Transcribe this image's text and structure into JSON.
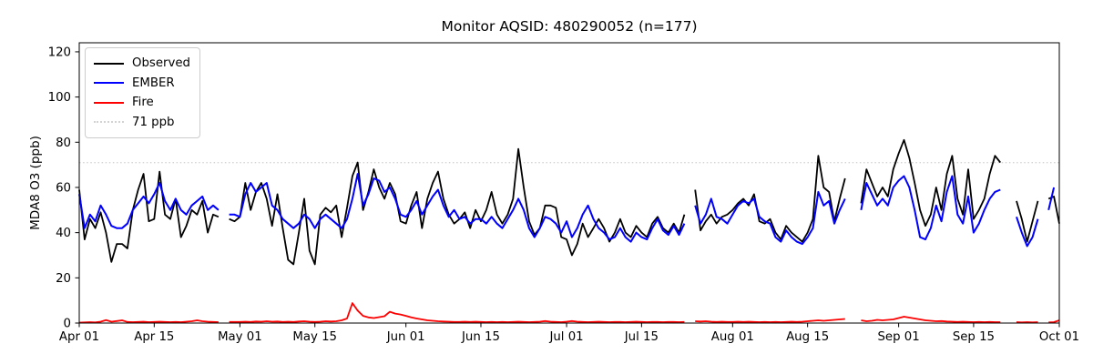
{
  "chart_data": {
    "type": "line",
    "title": "Monitor AQSID: 480290052 (n=177)",
    "xlabel": "",
    "ylabel": "MDA8 O3 (ppb)",
    "ylim": [
      0,
      124
    ],
    "yticks": [
      0,
      20,
      40,
      60,
      80,
      100,
      120
    ],
    "x_start": "Apr 01",
    "x_end": "Oct 01",
    "x_total_days": 183,
    "grid": false,
    "legend_position": "upper left",
    "xticks": [
      {
        "label": "Apr 01",
        "day": 0
      },
      {
        "label": "Apr 15",
        "day": 14
      },
      {
        "label": "May 01",
        "day": 30
      },
      {
        "label": "May 15",
        "day": 44
      },
      {
        "label": "Jun 01",
        "day": 61
      },
      {
        "label": "Jun 15",
        "day": 75
      },
      {
        "label": "Jul 01",
        "day": 91
      },
      {
        "label": "Jul 15",
        "day": 105
      },
      {
        "label": "Aug 01",
        "day": 122
      },
      {
        "label": "Aug 15",
        "day": 136
      },
      {
        "label": "Sep 01",
        "day": 153
      },
      {
        "label": "Sep 15",
        "day": 167
      },
      {
        "label": "Oct 01",
        "day": 183
      }
    ],
    "threshold": {
      "value": 71,
      "label": "71 ppb",
      "color": "#d3d3d3",
      "style": "dotted"
    },
    "legend": [
      {
        "label": "Observed",
        "color": "#000000",
        "style": "solid"
      },
      {
        "label": "EMBER",
        "color": "#0000ff",
        "style": "solid"
      },
      {
        "label": "Fire",
        "color": "#ff0000",
        "style": "solid"
      },
      {
        "label": "71 ppb",
        "color": "#d3d3d3",
        "style": "dotted"
      }
    ],
    "series": [
      {
        "name": "Observed",
        "color": "#000000",
        "width": 1.8,
        "values": [
          59,
          37,
          46,
          42,
          49,
          40,
          27,
          35,
          35,
          33,
          50,
          59,
          66,
          45,
          46,
          67,
          48,
          46,
          55,
          38,
          43,
          50,
          48,
          54,
          40,
          48,
          47,
          null,
          46,
          45,
          47,
          62,
          50,
          58,
          62,
          55,
          43,
          57,
          42,
          28,
          26,
          40,
          55,
          32,
          26,
          48,
          51,
          49,
          52,
          38,
          51,
          65,
          71,
          50,
          58,
          68,
          60,
          55,
          62,
          57,
          45,
          44,
          52,
          58,
          42,
          55,
          62,
          67,
          55,
          48,
          44,
          46,
          49,
          42,
          50,
          45,
          50,
          58,
          48,
          44,
          48,
          55,
          77,
          60,
          45,
          39,
          42,
          52,
          52,
          51,
          38,
          37,
          30,
          35,
          44,
          38,
          42,
          46,
          42,
          36,
          40,
          46,
          40,
          38,
          43,
          40,
          38,
          44,
          47,
          42,
          40,
          44,
          40,
          48,
          null,
          59,
          41,
          45,
          48,
          44,
          47,
          48,
          50,
          53,
          55,
          52,
          57,
          45,
          44,
          46,
          40,
          37,
          43,
          40,
          38,
          36,
          40,
          46,
          74,
          60,
          58,
          45,
          55,
          64,
          null,
          null,
          53,
          68,
          62,
          56,
          60,
          56,
          68,
          75,
          81,
          73,
          62,
          50,
          43,
          48,
          60,
          50,
          66,
          74,
          55,
          48,
          68,
          46,
          50,
          55,
          66,
          74,
          71,
          null,
          null,
          54,
          46,
          36,
          45,
          54,
          null,
          55,
          56,
          44
        ]
      },
      {
        "name": "EMBER",
        "color": "#0000ff",
        "width": 2.0,
        "values": [
          57,
          42,
          48,
          45,
          52,
          48,
          43,
          42,
          42,
          44,
          50,
          53,
          56,
          53,
          57,
          62,
          54,
          50,
          55,
          50,
          48,
          52,
          54,
          56,
          50,
          52,
          50,
          null,
          48,
          48,
          47,
          57,
          62,
          58,
          60,
          62,
          52,
          50,
          46,
          44,
          42,
          44,
          48,
          46,
          42,
          46,
          48,
          46,
          44,
          42,
          46,
          55,
          66,
          52,
          57,
          64,
          63,
          58,
          60,
          55,
          48,
          47,
          50,
          54,
          48,
          52,
          56,
          59,
          52,
          47,
          50,
          46,
          47,
          44,
          46,
          46,
          44,
          47,
          44,
          42,
          46,
          50,
          55,
          50,
          42,
          38,
          42,
          47,
          46,
          44,
          40,
          45,
          38,
          42,
          48,
          52,
          46,
          42,
          40,
          37,
          38,
          42,
          38,
          36,
          40,
          38,
          37,
          42,
          46,
          41,
          39,
          43,
          39,
          44,
          null,
          52,
          44,
          48,
          55,
          47,
          46,
          44,
          48,
          52,
          54,
          53,
          55,
          47,
          45,
          44,
          38,
          36,
          41,
          38,
          36,
          35,
          38,
          42,
          58,
          52,
          54,
          44,
          50,
          55,
          null,
          null,
          50,
          62,
          57,
          52,
          55,
          52,
          60,
          63,
          65,
          60,
          50,
          38,
          37,
          42,
          52,
          45,
          58,
          65,
          48,
          44,
          56,
          40,
          44,
          50,
          55,
          58,
          59,
          null,
          null,
          47,
          40,
          34,
          38,
          46,
          null,
          50,
          60,
          null
        ]
      },
      {
        "name": "Fire",
        "color": "#ff0000",
        "width": 1.8,
        "values": [
          0.2,
          0.3,
          0.4,
          0.3,
          0.6,
          1.3,
          0.6,
          0.9,
          1.2,
          0.5,
          0.4,
          0.5,
          0.6,
          0.4,
          0.5,
          0.6,
          0.5,
          0.4,
          0.5,
          0.4,
          0.6,
          0.8,
          1.2,
          0.8,
          0.6,
          0.5,
          0.4,
          null,
          0.5,
          0.5,
          0.5,
          0.6,
          0.5,
          0.7,
          0.6,
          0.8,
          0.6,
          0.7,
          0.5,
          0.6,
          0.5,
          0.7,
          0.8,
          0.6,
          0.5,
          0.6,
          0.8,
          0.7,
          0.8,
          1.2,
          2.0,
          8.8,
          5.5,
          3.2,
          2.5,
          2.2,
          2.6,
          3.0,
          5.0,
          4.2,
          3.8,
          3.2,
          2.5,
          2.0,
          1.6,
          1.2,
          1.0,
          0.8,
          0.7,
          0.6,
          0.5,
          0.5,
          0.6,
          0.5,
          0.6,
          0.5,
          0.4,
          0.5,
          0.4,
          0.5,
          0.4,
          0.5,
          0.6,
          0.5,
          0.4,
          0.5,
          0.6,
          0.9,
          0.6,
          0.5,
          0.4,
          0.6,
          0.9,
          0.6,
          0.5,
          0.4,
          0.5,
          0.6,
          0.5,
          0.4,
          0.5,
          0.5,
          0.4,
          0.5,
          0.6,
          0.5,
          0.4,
          0.5,
          0.5,
          0.4,
          0.5,
          0.5,
          0.4,
          0.5,
          null,
          0.8,
          0.7,
          0.8,
          0.6,
          0.5,
          0.6,
          0.5,
          0.5,
          0.6,
          0.5,
          0.6,
          0.5,
          0.4,
          0.5,
          0.4,
          0.5,
          0.4,
          0.5,
          0.6,
          0.5,
          0.6,
          0.8,
          1.0,
          1.2,
          1.0,
          1.2,
          1.4,
          1.6,
          1.8,
          null,
          null,
          1.2,
          0.8,
          1.0,
          1.4,
          1.2,
          1.4,
          1.6,
          2.2,
          2.8,
          2.4,
          2.0,
          1.6,
          1.2,
          1.0,
          0.8,
          0.9,
          0.7,
          0.6,
          0.5,
          0.6,
          0.5,
          0.4,
          0.5,
          0.4,
          0.5,
          0.4,
          0.4,
          null,
          null,
          0.4,
          0.3,
          0.4,
          0.3,
          0.4,
          null,
          0.3,
          0.4,
          1.2
        ]
      }
    ]
  }
}
